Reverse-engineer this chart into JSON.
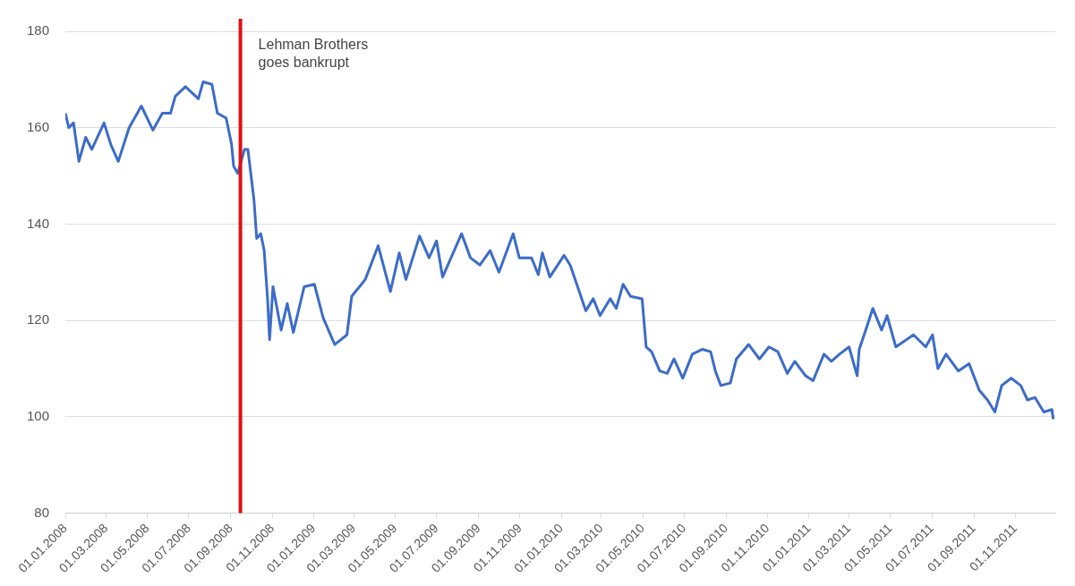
{
  "chart_data": {
    "type": "line",
    "x": [
      "2008-01-01",
      "2008-01-06",
      "2008-01-13",
      "2008-01-21",
      "2008-01-31",
      "2008-02-09",
      "2008-02-27",
      "2008-03-08",
      "2008-03-19",
      "2008-04-04",
      "2008-04-22",
      "2008-05-09",
      "2008-05-23",
      "2008-06-04",
      "2008-06-11",
      "2008-06-26",
      "2008-07-15",
      "2008-07-22",
      "2008-08-04",
      "2008-08-12",
      "2008-08-25",
      "2008-09-02",
      "2008-09-05",
      "2008-09-11",
      "2008-09-21",
      "2008-09-26",
      "2008-10-05",
      "2008-10-09",
      "2008-10-15",
      "2008-10-20",
      "2008-10-25",
      "2008-10-28",
      "2008-11-02",
      "2008-11-14",
      "2008-11-23",
      "2008-12-02",
      "2008-12-18",
      "2009-01-02",
      "2009-01-15",
      "2009-02-01",
      "2009-02-19",
      "2009-02-26",
      "2009-03-18",
      "2009-04-06",
      "2009-04-24",
      "2009-05-07",
      "2009-05-17",
      "2009-06-06",
      "2009-06-20",
      "2009-07-01",
      "2009-07-10",
      "2009-08-07",
      "2009-08-20",
      "2009-09-03",
      "2009-09-18",
      "2009-10-01",
      "2009-10-22",
      "2009-10-31",
      "2009-11-18",
      "2009-11-28",
      "2009-12-04",
      "2009-12-15",
      "2010-01-05",
      "2010-01-14",
      "2010-01-25",
      "2010-02-06",
      "2010-02-17",
      "2010-02-27",
      "2010-03-14",
      "2010-03-23",
      "2010-04-02",
      "2010-04-13",
      "2010-04-30",
      "2010-05-06",
      "2010-05-14",
      "2010-05-26",
      "2010-06-06",
      "2010-06-16",
      "2010-06-29",
      "2010-07-13",
      "2010-07-28",
      "2010-08-09",
      "2010-08-16",
      "2010-08-24",
      "2010-09-07",
      "2010-09-16",
      "2010-10-04",
      "2010-10-20",
      "2010-11-03",
      "2010-11-16",
      "2010-11-30",
      "2010-12-11",
      "2010-12-27",
      "2011-01-07",
      "2011-01-23",
      "2011-02-03",
      "2011-02-15",
      "2011-03-01",
      "2011-03-13",
      "2011-03-16",
      "2011-03-28",
      "2011-04-05",
      "2011-04-18",
      "2011-04-26",
      "2011-05-09",
      "2011-06-04",
      "2011-06-22",
      "2011-07-02",
      "2011-07-10",
      "2011-07-22",
      "2011-08-09",
      "2011-08-25",
      "2011-09-09",
      "2011-09-21",
      "2011-10-02",
      "2011-10-12",
      "2011-10-26",
      "2011-11-09",
      "2011-11-19",
      "2011-11-30",
      "2011-12-13",
      "2011-12-25",
      "2011-12-27"
    ],
    "series": [
      {
        "color": "#3c6cc8",
        "values": [
          163,
          160,
          161,
          153,
          158,
          155.5,
          161,
          156.5,
          153,
          160,
          164.5,
          159.5,
          163,
          163,
          166.5,
          168.5,
          166,
          169.5,
          169,
          163,
          162,
          156.5,
          152,
          150.5,
          155.5,
          155.5,
          145,
          137,
          138,
          134.5,
          124.5,
          116,
          127,
          118,
          123.5,
          117.5,
          127,
          127.5,
          120.5,
          115,
          117,
          125,
          128.5,
          135.5,
          126,
          134,
          128.5,
          137.5,
          133,
          136.5,
          129,
          138,
          133,
          131.5,
          134.5,
          130,
          138,
          133,
          133,
          129.5,
          134,
          129,
          133.5,
          131.5,
          127,
          122,
          124.5,
          121,
          124.5,
          122.5,
          127.5,
          125,
          124.5,
          114.5,
          113.5,
          109.5,
          109,
          112,
          108,
          113,
          114,
          113.5,
          109.5,
          106.5,
          107,
          112,
          115,
          112,
          114.5,
          113.5,
          109,
          111.5,
          108.5,
          107.5,
          113,
          111.5,
          113,
          114.5,
          108.5,
          114,
          119,
          122.5,
          118,
          121,
          114.5,
          117,
          114.5,
          117,
          110,
          113,
          109.5,
          111,
          105.5,
          103.5,
          101,
          106.5,
          108,
          106.5,
          103.5,
          104,
          101,
          101.5,
          99.5
        ]
      }
    ],
    "xlim": [
      "2008-01-01",
      "2011-12-30"
    ],
    "xticks": [
      {
        "value": "2008-01-01",
        "label": "01.01.2008"
      },
      {
        "value": "2008-03-01",
        "label": "01.03.2008"
      },
      {
        "value": "2008-05-01",
        "label": "01.05.2008"
      },
      {
        "value": "2008-07-01",
        "label": "01.07.2008"
      },
      {
        "value": "2008-09-01",
        "label": "01.09.2008"
      },
      {
        "value": "2008-11-01",
        "label": "01.11.2008"
      },
      {
        "value": "2009-01-01",
        "label": "01.01.2009"
      },
      {
        "value": "2009-03-01",
        "label": "01.03.2009"
      },
      {
        "value": "2009-05-01",
        "label": "01.05.2009"
      },
      {
        "value": "2009-07-01",
        "label": "01.07.2009"
      },
      {
        "value": "2009-09-01",
        "label": "01.09.2009"
      },
      {
        "value": "2009-11-01",
        "label": "01.11.2009"
      },
      {
        "value": "2010-01-01",
        "label": "01.01.2010"
      },
      {
        "value": "2010-03-01",
        "label": "01.03.2010"
      },
      {
        "value": "2010-05-01",
        "label": "01.05.2010"
      },
      {
        "value": "2010-07-01",
        "label": "01.07.2010"
      },
      {
        "value": "2010-09-01",
        "label": "01.09.2010"
      },
      {
        "value": "2010-11-01",
        "label": "01.11.2010"
      },
      {
        "value": "2011-01-01",
        "label": "01.01.2011"
      },
      {
        "value": "2011-03-01",
        "label": "01.03.2011"
      },
      {
        "value": "2011-05-01",
        "label": "01.05.2011"
      },
      {
        "value": "2011-07-01",
        "label": "01.07.2011"
      },
      {
        "value": "2011-09-01",
        "label": "01.09.2011"
      },
      {
        "value": "2011-11-01",
        "label": "01.11.2011"
      }
    ],
    "ylim": [
      80,
      180
    ],
    "yticks": [
      80,
      100,
      120,
      140,
      160,
      180
    ],
    "ref_lines": [
      {
        "axis": "x",
        "value": "2008-09-15",
        "label": "Lehman Brothers goes bankrupt",
        "color": "#e01010"
      }
    ],
    "grid": "y",
    "legend": false,
    "marker": "none",
    "line_style": "solid"
  }
}
